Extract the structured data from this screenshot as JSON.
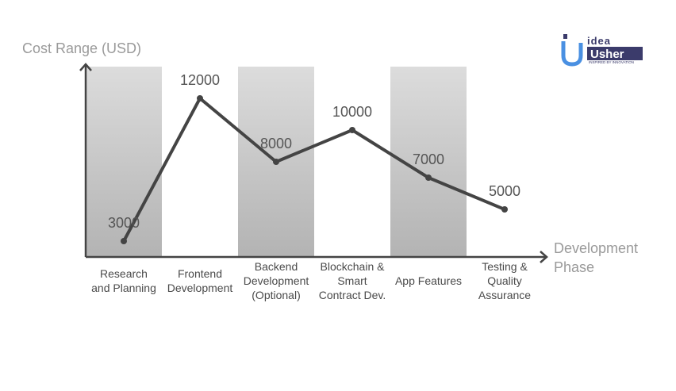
{
  "chart_data": {
    "type": "line",
    "title": "",
    "ylabel": "Cost Range (USD)",
    "xlabel_lines": [
      "Development",
      "Phase"
    ],
    "categories": [
      [
        "Research",
        "and Planning"
      ],
      [
        "Frontend",
        "Development"
      ],
      [
        "Backend",
        "Development",
        "(Optional)"
      ],
      [
        "Blockchain &",
        "Smart",
        "Contract Dev."
      ],
      [
        "App Features"
      ],
      [
        "Testing &",
        "Quality",
        "Assurance"
      ]
    ],
    "values": [
      3000,
      12000,
      8000,
      10000,
      7000,
      5000
    ],
    "ylim": [
      2000,
      14000
    ],
    "grid": false,
    "colors": {
      "line": "#444444",
      "band_top": "#dcdcdc",
      "band_bottom": "#b3b3b3",
      "axis": "#444444"
    }
  },
  "logo": {
    "line1": "idea",
    "line2": "Usher",
    "tagline": "INSPIRED BY INNOVATION",
    "color": "#3b3b6b",
    "accent": "#4a90e2"
  }
}
